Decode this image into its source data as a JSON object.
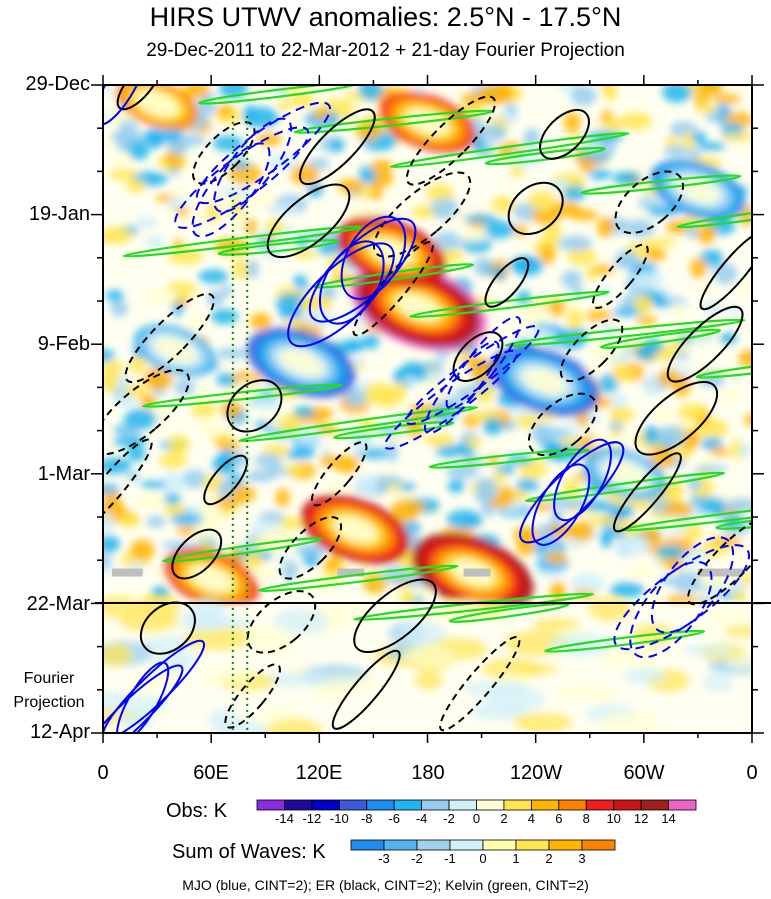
{
  "title": "HIRS UTWV anomalies: 2.5°N - 17.5°N",
  "subtitle": "29-Dec-2011 to 22-Mar-2012 + 21-day Fourier Projection",
  "y_labels": [
    "29-Dec",
    "19-Jan",
    "9-Feb",
    "1-Mar",
    "22-Mar",
    "12-Apr"
  ],
  "projection_label_1": "Fourier",
  "projection_label_2": "Projection",
  "x_labels": [
    "0",
    "60E",
    "120E",
    "180",
    "120W",
    "60W",
    "0"
  ],
  "obs_label": "Obs: K",
  "obs_ticks": [
    "-14",
    "-12",
    "-10",
    "-8",
    "-6",
    "-4",
    "-2",
    "0",
    "2",
    "4",
    "6",
    "8",
    "10",
    "12",
    "14"
  ],
  "obs_colors": [
    "#8a2be2",
    "#1e0a9c",
    "#0000c8",
    "#3c5adc",
    "#1e8cf0",
    "#22b4f0",
    "#96cdf0",
    "#d2f0fa",
    "#ffffd2",
    "#ffe650",
    "#ffb400",
    "#ff8200",
    "#f01e1e",
    "#c81414",
    "#a01e1e",
    "#f064c8"
  ],
  "waves_label": "Sum of Waves: K",
  "waves_ticks": [
    "-3",
    "-2",
    "-1",
    "0",
    "1",
    "2",
    "3"
  ],
  "waves_colors": [
    "#1e8cf0",
    "#50b4f0",
    "#a0d2f0",
    "#d2f0fa",
    "#ffffaa",
    "#ffe650",
    "#ffb400",
    "#ff8200"
  ],
  "footer": "MJO (blue, CINT=2); ER (black, CINT=2); Kelvin (green, CINT=2)",
  "colors": {
    "mjo": "#0000ff",
    "er": "#000000",
    "kelvin": "#22dd22"
  },
  "chart_data": {
    "type": "heatmap",
    "title": "HIRS UTWV anomalies: 2.5°N - 17.5°N",
    "x_axis": {
      "ticks": [
        "0",
        "60E",
        "120E",
        "180",
        "120W",
        "60W",
        "0"
      ],
      "range_deg_east": [
        0,
        360
      ]
    },
    "y_axis": {
      "ticks": [
        "29-Dec",
        "19-Jan",
        "9-Feb",
        "1-Mar",
        "22-Mar",
        "12-Apr"
      ],
      "reversed": true
    },
    "observation_end": "22-Mar",
    "colorbar_obs": {
      "label": "Obs: K",
      "levels": [
        -14,
        -12,
        -10,
        -8,
        -6,
        -4,
        -2,
        0,
        2,
        4,
        6,
        8,
        10,
        12,
        14
      ]
    },
    "colorbar_waves": {
      "label": "Sum of Waves: K",
      "levels": [
        -3,
        -2,
        -1,
        0,
        1,
        2,
        3
      ]
    },
    "contours": [
      {
        "name": "MJO",
        "color": "blue",
        "cint": 2
      },
      {
        "name": "ER",
        "color": "black",
        "cint": 2
      },
      {
        "name": "Kelvin",
        "color": "green",
        "cint": 2
      }
    ],
    "anomaly_features": [
      {
        "lon": 175,
        "date": "3-Feb",
        "value": 14
      },
      {
        "lon": 160,
        "date": "25-Jan",
        "value": 10
      },
      {
        "lon": 205,
        "date": "17-Mar",
        "value": 12
      },
      {
        "lon": 140,
        "date": "10-Mar",
        "value": 10
      },
      {
        "lon": 60,
        "date": "18-Mar",
        "value": 8
      },
      {
        "lon": 180,
        "date": "4-Jan",
        "value": 8
      },
      {
        "lon": 30,
        "date": "1-Jan",
        "value": 6
      },
      {
        "lon": 110,
        "date": "12-Feb",
        "value": -10
      },
      {
        "lon": 245,
        "date": "15-Feb",
        "value": -10
      },
      {
        "lon": 290,
        "date": "1-Mar",
        "value": -6
      },
      {
        "lon": 330,
        "date": "15-Jan",
        "value": -8
      },
      {
        "lon": 40,
        "date": "10-Feb",
        "value": -6
      }
    ]
  }
}
